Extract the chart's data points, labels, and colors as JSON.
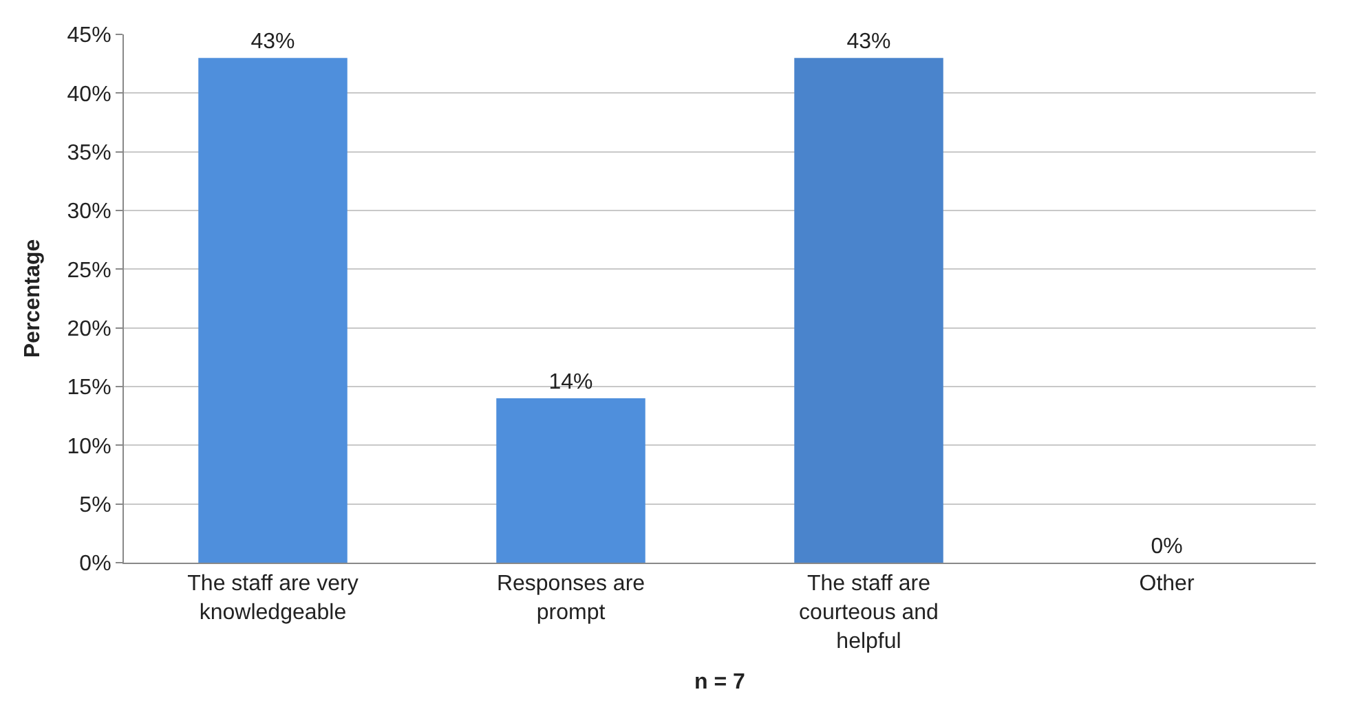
{
  "chart_data": {
    "type": "bar",
    "categories": [
      "The staff are very knowledgeable",
      "Responses are prompt",
      "The staff are courteous and helpful",
      "Other"
    ],
    "values": [
      43,
      14,
      43,
      0
    ],
    "colors": [
      "#4f8fdc",
      "#4f8fdc",
      "#4a84cc",
      "#4f8fdc"
    ],
    "value_labels": [
      "43%",
      "14%",
      "43%",
      "0%"
    ],
    "xlabel": "n = 7",
    "ylabel": "Percentage",
    "ylim": [
      0,
      45
    ],
    "yticks": [
      {
        "value": 0,
        "label": "0%"
      },
      {
        "value": 5,
        "label": "5%"
      },
      {
        "value": 10,
        "label": "10%"
      },
      {
        "value": 15,
        "label": "15%"
      },
      {
        "value": 20,
        "label": "20%"
      },
      {
        "value": 25,
        "label": "25%"
      },
      {
        "value": 30,
        "label": "30%"
      },
      {
        "value": 35,
        "label": "35%"
      },
      {
        "value": 40,
        "label": "40%"
      },
      {
        "value": 45,
        "label": "45%"
      }
    ],
    "grid": "y"
  }
}
